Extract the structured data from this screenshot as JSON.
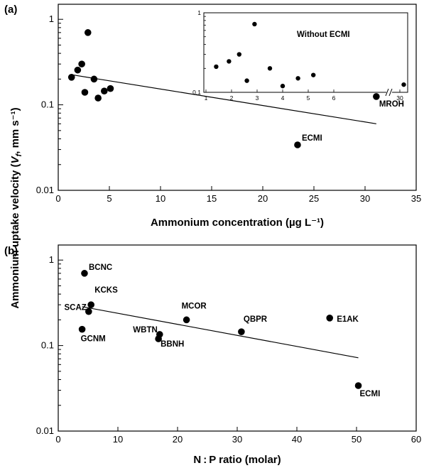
{
  "ylabel": "Ammonium uptake velocity (V_f, mm s⁻¹)",
  "chart_data": [
    {
      "id": "a",
      "type": "scatter",
      "panel_label": "(a)",
      "xlabel": "Ammonium concentration (µg L⁻¹)",
      "ylabel": "",
      "xlim": [
        0,
        35
      ],
      "xticks": [
        0,
        5,
        10,
        15,
        20,
        25,
        30,
        35
      ],
      "ylim": [
        0.01,
        1.5
      ],
      "yscale": "log",
      "yticks": [
        0.01,
        0.1,
        1
      ],
      "yticklabels": [
        "0.01",
        "0.1",
        "1"
      ],
      "points": [
        {
          "x": 1.3,
          "y": 0.21,
          "label": ""
        },
        {
          "x": 1.9,
          "y": 0.255,
          "label": ""
        },
        {
          "x": 2.3,
          "y": 0.3,
          "label": ""
        },
        {
          "x": 2.6,
          "y": 0.14,
          "label": ""
        },
        {
          "x": 2.9,
          "y": 0.7,
          "label": ""
        },
        {
          "x": 3.5,
          "y": 0.2,
          "label": ""
        },
        {
          "x": 3.9,
          "y": 0.12,
          "label": ""
        },
        {
          "x": 4.5,
          "y": 0.145,
          "label": ""
        },
        {
          "x": 5.1,
          "y": 0.155,
          "label": ""
        },
        {
          "x": 23.4,
          "y": 0.034,
          "label": "ECMI"
        },
        {
          "x": 31.1,
          "y": 0.125,
          "label": "MROH"
        }
      ],
      "trendline": {
        "x": [
          1.3,
          31.1
        ],
        "y": [
          0.225,
          0.06
        ]
      },
      "inset": {
        "title": "Without ECMI",
        "yticks": [
          0.1,
          1
        ],
        "yticklabels": [
          "0.1",
          "1"
        ],
        "ylim": [
          0.1,
          1
        ],
        "xticks": [
          1,
          2,
          3,
          4,
          5,
          6,
          30
        ],
        "points": [
          {
            "x": 1.4,
            "y": 0.21
          },
          {
            "x": 1.9,
            "y": 0.245
          },
          {
            "x": 2.3,
            "y": 0.3
          },
          {
            "x": 2.6,
            "y": 0.14
          },
          {
            "x": 2.9,
            "y": 0.72
          },
          {
            "x": 3.5,
            "y": 0.2
          },
          {
            "x": 4.0,
            "y": 0.12
          },
          {
            "x": 4.6,
            "y": 0.15
          },
          {
            "x": 5.2,
            "y": 0.165
          },
          {
            "x": 31.1,
            "y": 0.125
          }
        ]
      }
    },
    {
      "id": "b",
      "type": "scatter",
      "panel_label": "(b)",
      "xlabel": "N : P ratio (molar)",
      "ylabel": "",
      "xlim": [
        0,
        60
      ],
      "xticks": [
        0,
        10,
        20,
        30,
        40,
        50,
        60
      ],
      "ylim": [
        0.01,
        1.5
      ],
      "yscale": "log",
      "yticks": [
        0.01,
        0.1,
        1
      ],
      "yticklabels": [
        "0.01",
        "0.1",
        "1"
      ],
      "points": [
        {
          "x": 4.4,
          "y": 0.7,
          "label": "BCNC"
        },
        {
          "x": 5.5,
          "y": 0.3,
          "label": "KCKS"
        },
        {
          "x": 5.1,
          "y": 0.25,
          "label": "SCAZ"
        },
        {
          "x": 4.0,
          "y": 0.155,
          "label": "GCNM"
        },
        {
          "x": 17.0,
          "y": 0.135,
          "label": "WBTN"
        },
        {
          "x": 16.8,
          "y": 0.12,
          "label": "BBNH"
        },
        {
          "x": 21.5,
          "y": 0.2,
          "label": "MCOR"
        },
        {
          "x": 30.7,
          "y": 0.145,
          "label": "QBPR"
        },
        {
          "x": 45.5,
          "y": 0.21,
          "label": "E1AK"
        },
        {
          "x": 50.3,
          "y": 0.034,
          "label": "ECMI"
        }
      ],
      "trendline": {
        "x": [
          4.0,
          50.3
        ],
        "y": [
          0.285,
          0.072
        ]
      }
    }
  ]
}
